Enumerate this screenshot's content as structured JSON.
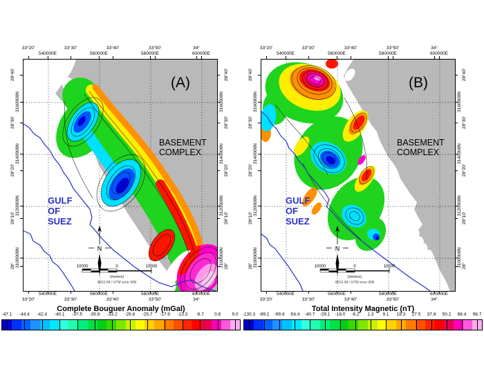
{
  "figure": {
    "axes": {
      "lon_deg": [
        "33°20'",
        "33°30'",
        "33°40'",
        "33°50'",
        "34°"
      ],
      "eastings": [
        "540000E",
        "560000E",
        "580000E",
        "600000E"
      ],
      "lat_deg": [
        "28°40'",
        "28°30'",
        "28°20'",
        "28°10'",
        "28°"
      ],
      "northings": [
        "3160000N",
        "3140000N",
        "3120000N",
        "3100000N"
      ]
    },
    "panel_a": {
      "tag": "(A)",
      "sea_label": [
        "GULF",
        "OF",
        "SUEZ"
      ],
      "land_label": [
        "BASEMENT",
        "COMPLEX"
      ],
      "north_label": "N",
      "scalebar": {
        "left": "10000",
        "zero": "0",
        "right": "10000",
        "units": "(meters)",
        "crs": "WGS 84 / UTM zone 36N"
      },
      "colorbar": {
        "title": "Complete Bouguer Anomaly (mGal)",
        "tick_labels": [
          "-47.1",
          "-44.4",
          "-42.4",
          "-40.1",
          "-37.5",
          "-35.8",
          "-33.2",
          "-29.8",
          "-25.7",
          "-17.9",
          "-13.3",
          "-6.7",
          "0.8",
          "9.0"
        ]
      }
    },
    "panel_b": {
      "tag": "(B)",
      "sea_label": [
        "GULF",
        "OF",
        "SUEZ"
      ],
      "land_label": [
        "BASEMENT",
        "COMPLEX"
      ],
      "north_label": "N",
      "scalebar": {
        "left": "10000",
        "zero": "0",
        "right": "10000",
        "units": "(meters)",
        "crs": "WGS 84 / UTM zone 36N"
      },
      "colorbar": {
        "title": "Total Intensity Magnetic (nT)",
        "tick_labels": [
          "-130.3",
          "-89.1",
          "-69.4",
          "-54.4",
          "-40.7",
          "-29.1",
          "-18.0",
          "-6.2",
          "1.3",
          "9.1",
          "18.3",
          "27.5",
          "37.8",
          "50.2",
          "68.4",
          "98.7"
        ]
      }
    },
    "palette": [
      "#0000cd",
      "#0030ff",
      "#0064ff",
      "#2090ff",
      "#00c0ff",
      "#00e8ff",
      "#30ffe0",
      "#20ffb0",
      "#00f080",
      "#00e048",
      "#00d014",
      "#38d800",
      "#80e600",
      "#c8f200",
      "#ffff00",
      "#ffd200",
      "#ffa800",
      "#ff7c00",
      "#ff5000",
      "#ff2600",
      "#ff0000",
      "#e80052",
      "#ff00b8",
      "#ff58dc",
      "#ffaef0"
    ],
    "colors": {
      "land_gray": "#b9b9b9",
      "coastline_blue": "#2830c8",
      "sea_label_blue": "#2831c8"
    }
  }
}
